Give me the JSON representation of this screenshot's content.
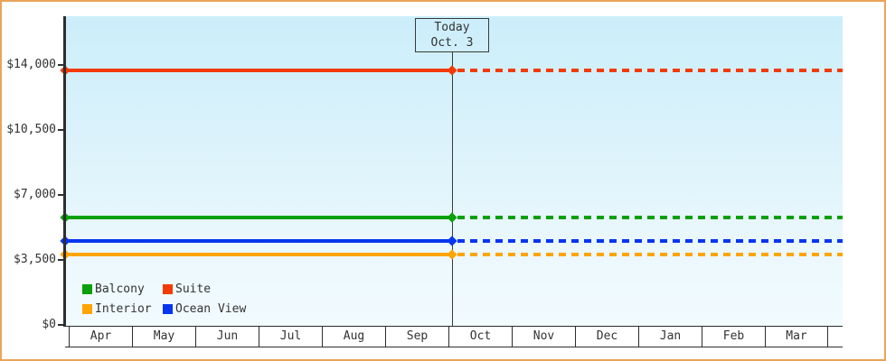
{
  "today_box": {
    "line1": "Today",
    "line2": "Oct. 3"
  },
  "y_axis": {
    "ticks": [
      {
        "label": "$14,000",
        "value": 14000
      },
      {
        "label": "$10,500",
        "value": 10500
      },
      {
        "label": "$7,000",
        "value": 7000
      },
      {
        "label": "$3,500",
        "value": 3500
      },
      {
        "label": "$0",
        "value": 0
      }
    ]
  },
  "x_axis": {
    "months": [
      "Apr",
      "May",
      "Jun",
      "Jul",
      "Aug",
      "Sep",
      "Oct",
      "Nov",
      "Dec",
      "Jan",
      "Feb",
      "Mar"
    ]
  },
  "legend": [
    {
      "name": "Balcony",
      "color": "#0AA00A"
    },
    {
      "name": "Suite",
      "color": "#F23B05"
    },
    {
      "name": "Interior",
      "color": "#FFA405"
    },
    {
      "name": "Ocean View",
      "color": "#0435F0"
    }
  ],
  "colors": {
    "frame_border": "#EAA45A",
    "plot_bg_top": "#CBEEFA",
    "plot_bg_bottom": "#F2FBFE",
    "axis": "#2E2E2E",
    "text": "#333333"
  },
  "chart_data": {
    "type": "line",
    "title": "",
    "xlabel": "",
    "ylabel": "",
    "x": [
      "Apr",
      "May",
      "Jun",
      "Jul",
      "Aug",
      "Sep",
      "Oct",
      "Nov",
      "Dec",
      "Jan",
      "Feb",
      "Mar"
    ],
    "series": [
      {
        "name": "Suite",
        "color": "#F23B05",
        "value": 13700,
        "constant": true
      },
      {
        "name": "Balcony",
        "color": "#0AA00A",
        "value": 5800,
        "constant": true
      },
      {
        "name": "Ocean View",
        "color": "#0435F0",
        "value": 4500,
        "constant": true
      },
      {
        "name": "Interior",
        "color": "#FFA405",
        "value": 3800,
        "constant": true
      }
    ],
    "ylim": [
      0,
      14000
    ],
    "y_ticks": [
      0,
      3500,
      7000,
      10500,
      14000
    ],
    "annotation": {
      "label": "Today Oct. 3",
      "position_month": "Oct",
      "position_day": 3
    },
    "line_style_note": "solid with diamond endpoint markers before today; dashed after today",
    "legend_position": "bottom-left inside plot",
    "grid": false
  }
}
